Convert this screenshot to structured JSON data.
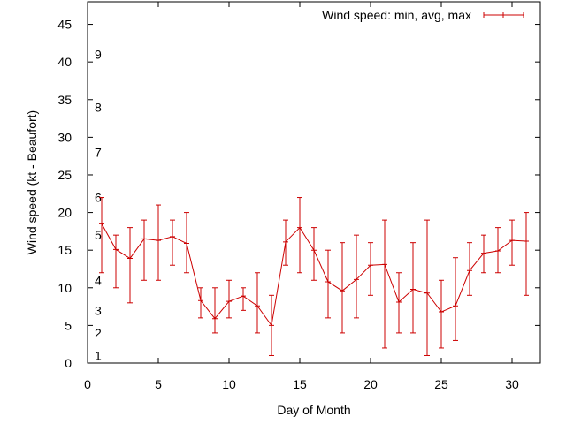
{
  "chart_data": {
    "type": "line",
    "title": "",
    "xlabel": "Day of Month",
    "ylabel": "Wind speed (kt - Beaufort)",
    "xlim": [
      0,
      32
    ],
    "ylim": [
      0,
      48
    ],
    "xticks": [
      0,
      5,
      10,
      15,
      20,
      25,
      30
    ],
    "yticks": [
      0,
      5,
      10,
      15,
      20,
      25,
      30,
      35,
      40,
      45
    ],
    "grid": false,
    "legend_position": "top-right",
    "beaufort_labels": [
      {
        "label": "1",
        "value": 1
      },
      {
        "label": "2",
        "value": 4
      },
      {
        "label": "3",
        "value": 7
      },
      {
        "label": "4",
        "value": 11
      },
      {
        "label": "5",
        "value": 17
      },
      {
        "label": "6",
        "value": 22
      },
      {
        "label": "7",
        "value": 28
      },
      {
        "label": "8",
        "value": 34
      },
      {
        "label": "9",
        "value": 41
      }
    ],
    "series": [
      {
        "name": "Wind speed: min, avg, max",
        "color": "#cc0000",
        "x": [
          1,
          2,
          3,
          4,
          5,
          6,
          7,
          8,
          9,
          10,
          11,
          12,
          13,
          14,
          15,
          16,
          17,
          18,
          19,
          20,
          21,
          22,
          23,
          24,
          25,
          26,
          27,
          28,
          29,
          30,
          31
        ],
        "avg": [
          18.5,
          15.1,
          13.9,
          16.5,
          16.3,
          16.8,
          15.9,
          8.3,
          5.9,
          8.2,
          8.9,
          7.6,
          5.0,
          16.1,
          18.0,
          15.0,
          10.8,
          9.6,
          11.1,
          13.0,
          13.1,
          8.1,
          9.8,
          9.3,
          6.8,
          7.6,
          12.3,
          14.6,
          14.9,
          16.3,
          16.2
        ],
        "min": [
          12,
          10,
          8,
          11,
          11,
          13,
          12,
          6,
          4,
          6,
          7,
          4,
          1,
          13,
          12,
          11,
          6,
          4,
          6,
          9,
          2,
          4,
          4,
          1,
          2,
          3,
          9,
          12,
          12,
          13,
          9
        ],
        "max": [
          22,
          17,
          18,
          19,
          21,
          19,
          20,
          10,
          10,
          11,
          10,
          12,
          9,
          19,
          22,
          18,
          15,
          16,
          17,
          16,
          19,
          12,
          16,
          19,
          11,
          14,
          16,
          17,
          18,
          19,
          20
        ]
      }
    ]
  }
}
